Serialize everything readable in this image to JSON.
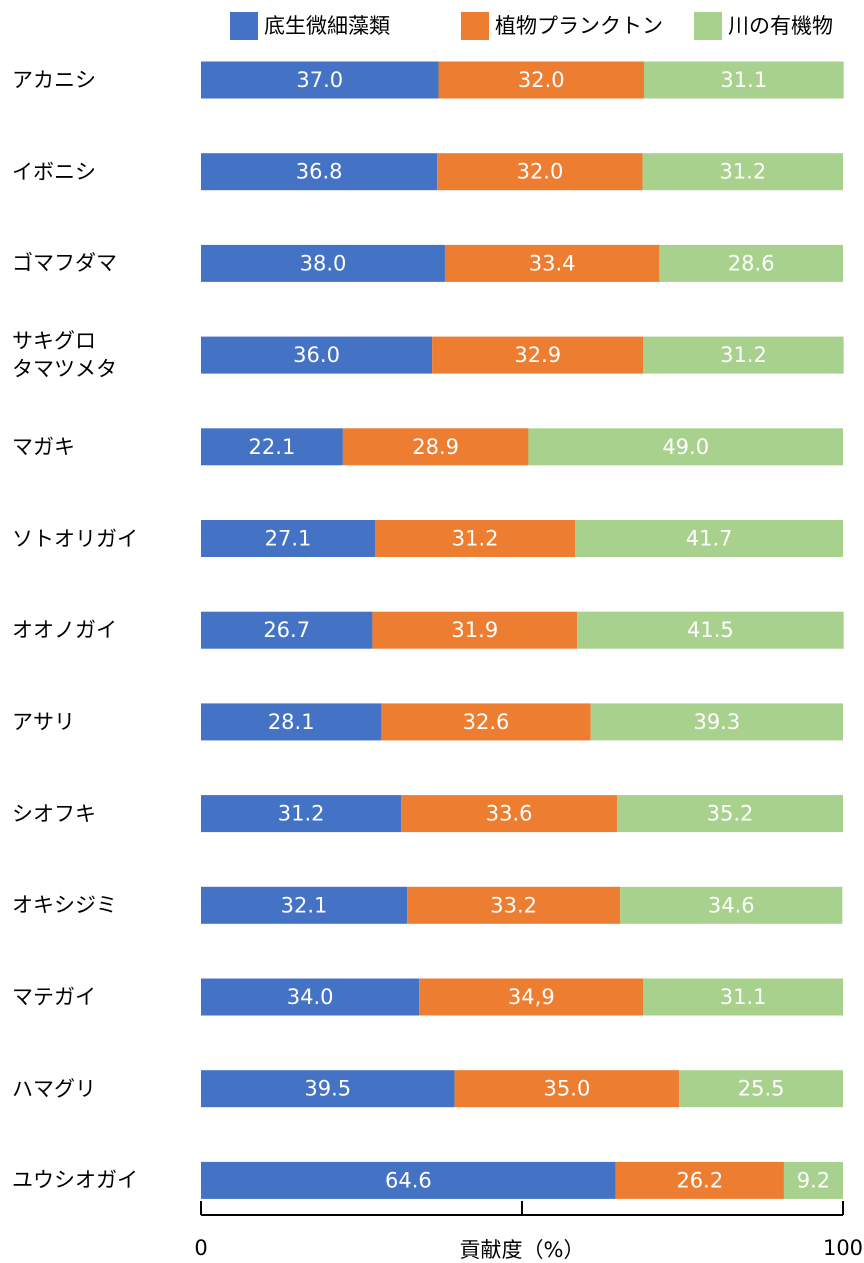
{
  "chart_data": {
    "type": "stacked-bar-horizontal",
    "categories": [
      "アカニシ",
      "イボニシ",
      "ゴマフダマ",
      "サキグロ\nタマツメタ",
      "マガキ",
      "ソトオリガイ",
      "オオノガイ",
      "アサリ",
      "シオフキ",
      "オキシジミ",
      "マテガイ",
      "ハマグリ",
      "ユウシオガイ"
    ],
    "series": [
      {
        "name": "底生微細藻類",
        "color": "#4472c4",
        "values": [
          37.0,
          36.8,
          38.0,
          36.0,
          22.1,
          27.1,
          26.7,
          28.1,
          31.2,
          32.1,
          34.0,
          39.5,
          64.6
        ],
        "value_labels": [
          "37.0",
          "36.8",
          "38.0",
          "36.0",
          "22.1",
          "27.1",
          "26.7",
          "28.1",
          "31.2",
          "32.1",
          "34.0",
          "39.5",
          "64.6"
        ]
      },
      {
        "name": "植物プランクトン",
        "color": "#ed7d31",
        "values": [
          32.0,
          32.0,
          33.4,
          32.9,
          28.9,
          31.2,
          31.9,
          32.6,
          33.6,
          33.2,
          34.9,
          35.0,
          26.2
        ],
        "value_labels": [
          "32.0",
          "32.0",
          "33.4",
          "32.9",
          "28.9",
          "31.2",
          "31.9",
          "32.6",
          "33.6",
          "33.2",
          "34,9",
          "35.0",
          "26.2"
        ]
      },
      {
        "name": "川の有機物",
        "color": "#a9d18e",
        "values": [
          31.1,
          31.2,
          28.6,
          31.2,
          49.0,
          41.7,
          41.5,
          39.3,
          35.2,
          34.6,
          31.1,
          25.5,
          9.2
        ],
        "value_labels": [
          "31.1",
          "31.2",
          "28.6",
          "31.2",
          "49.0",
          "41.7",
          "41.5",
          "39.3",
          "35.2",
          "34.6",
          "31.1",
          "25.5",
          "9.2"
        ]
      }
    ],
    "xlabel": "貢献度（%）",
    "xlim": [
      0,
      100
    ],
    "xticks": [
      0,
      {
        "value": 50,
        "label": null
      },
      100
    ],
    "legend": "top"
  }
}
